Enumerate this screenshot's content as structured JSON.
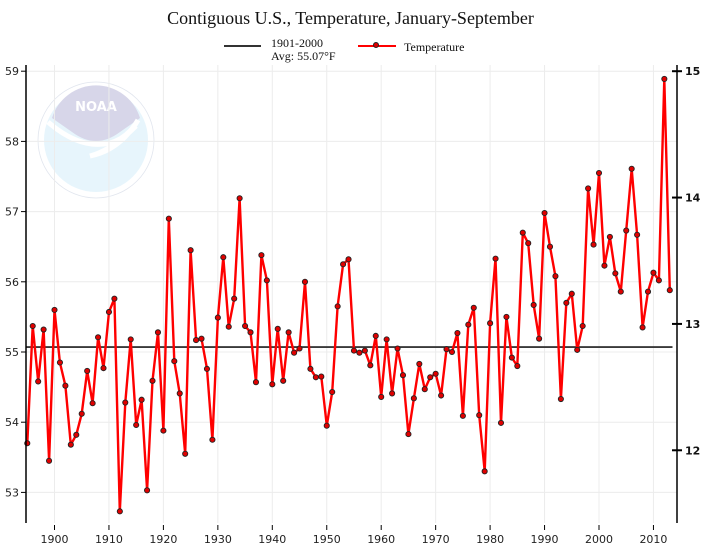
{
  "chart_data": {
    "type": "line",
    "title": "Contiguous U.S., Temperature, January-September",
    "xlabel": "",
    "ylabel": "",
    "ylabel_right": "",
    "xlim": [
      1895,
      2014
    ],
    "ylim": [
      52.55,
      59.1
    ],
    "ylim_right_celsius": [
      11.42,
      15.06
    ],
    "grid": true,
    "legend_position": "top-center",
    "x_ticks": [
      1900,
      1910,
      1920,
      1930,
      1940,
      1950,
      1960,
      1970,
      1980,
      1990,
      2000,
      2010
    ],
    "y_ticks": [
      53,
      54,
      55,
      56,
      57,
      58,
      59
    ],
    "y_ticks_right": [
      12,
      13,
      14,
      15
    ],
    "legend": [
      {
        "name": "1901-2000",
        "subtitle": "Avg: 55.07°F",
        "color": "#333333"
      },
      {
        "name": "Temperature",
        "color": "#ff0000"
      }
    ],
    "reference_line": {
      "label": "1901-2000 Avg",
      "value": 55.07
    },
    "series": [
      {
        "name": "Temperature",
        "color": "#ff0000",
        "x": [
          1895,
          1896,
          1897,
          1898,
          1899,
          1900,
          1901,
          1902,
          1903,
          1904,
          1905,
          1906,
          1907,
          1908,
          1909,
          1910,
          1911,
          1912,
          1913,
          1914,
          1915,
          1916,
          1917,
          1918,
          1919,
          1920,
          1921,
          1922,
          1923,
          1924,
          1925,
          1926,
          1927,
          1928,
          1929,
          1930,
          1931,
          1932,
          1933,
          1934,
          1935,
          1936,
          1937,
          1938,
          1939,
          1940,
          1941,
          1942,
          1943,
          1944,
          1945,
          1946,
          1947,
          1948,
          1949,
          1950,
          1951,
          1952,
          1953,
          1954,
          1955,
          1956,
          1957,
          1958,
          1959,
          1960,
          1961,
          1962,
          1963,
          1964,
          1965,
          1966,
          1967,
          1968,
          1969,
          1970,
          1971,
          1972,
          1973,
          1974,
          1975,
          1976,
          1977,
          1978,
          1979,
          1980,
          1981,
          1982,
          1983,
          1984,
          1985,
          1986,
          1987,
          1988,
          1989,
          1990,
          1991,
          1992,
          1993,
          1994,
          1995,
          1996,
          1997,
          1998,
          1999,
          2000,
          2001,
          2002,
          2003,
          2004,
          2005,
          2006,
          2007,
          2008,
          2009,
          2010,
          2011,
          2012,
          2013
        ],
        "values": [
          53.7,
          55.37,
          54.58,
          55.32,
          53.45,
          55.6,
          54.85,
          54.52,
          53.68,
          53.82,
          54.12,
          54.73,
          54.27,
          55.21,
          54.77,
          55.57,
          55.76,
          52.73,
          54.28,
          55.18,
          53.96,
          54.32,
          53.03,
          54.59,
          55.28,
          53.88,
          56.9,
          54.87,
          54.41,
          53.55,
          56.45,
          55.17,
          55.19,
          54.76,
          53.75,
          55.49,
          56.35,
          55.36,
          55.76,
          57.19,
          55.37,
          55.28,
          54.57,
          56.38,
          56.02,
          54.54,
          55.33,
          54.59,
          55.28,
          54.99,
          55.05,
          56.0,
          54.76,
          54.64,
          54.65,
          53.95,
          54.43,
          55.65,
          56.25,
          56.32,
          55.02,
          54.99,
          55.02,
          54.81,
          55.23,
          54.36,
          55.18,
          54.41,
          55.05,
          54.67,
          53.83,
          54.34,
          54.83,
          54.47,
          54.64,
          54.69,
          54.38,
          55.04,
          55.0,
          55.27,
          54.09,
          55.39,
          55.63,
          54.1,
          53.3,
          55.41,
          56.33,
          53.99,
          55.5,
          54.92,
          54.8,
          56.7,
          56.55,
          55.67,
          55.19,
          56.98,
          56.5,
          56.08,
          54.33,
          55.7,
          55.83,
          55.03,
          55.37,
          57.33,
          56.53,
          57.55,
          56.23,
          56.64,
          56.12,
          55.86,
          56.73,
          57.61,
          56.67,
          55.35,
          55.86,
          56.13,
          56.02,
          58.89,
          55.88
        ]
      }
    ]
  }
}
